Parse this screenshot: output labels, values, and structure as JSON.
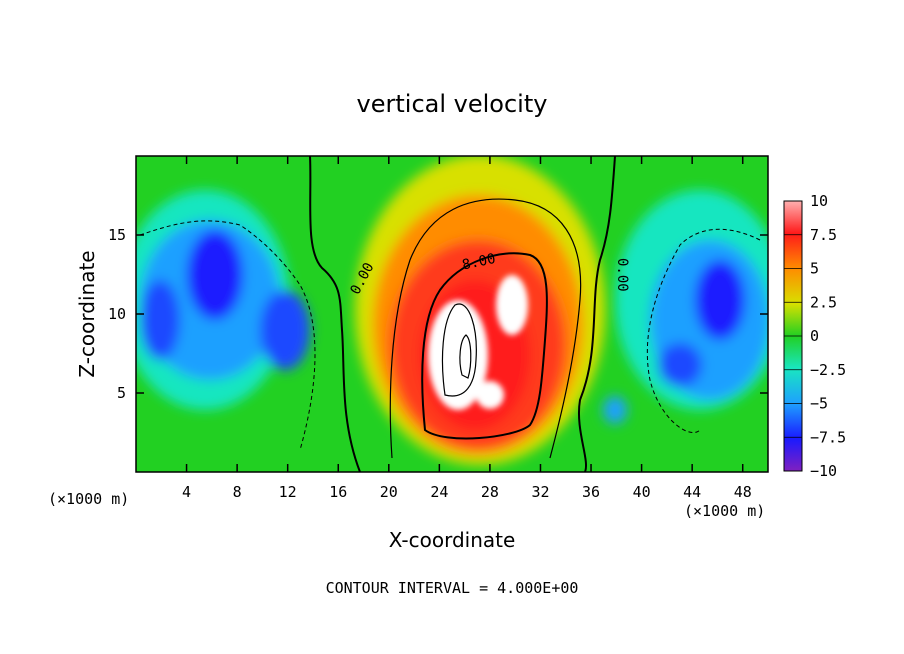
{
  "chart_data": {
    "type": "heatmap",
    "title": "vertical velocity",
    "xlabel": "X-coordinate",
    "ylabel": "Z-coordinate",
    "x_unit": "(×1000 m)",
    "z_unit": "(×1000 m)",
    "xlim": [
      0,
      50
    ],
    "ylim": [
      0,
      20
    ],
    "xticks": [
      4,
      8,
      12,
      16,
      20,
      24,
      28,
      32,
      36,
      40,
      44,
      48
    ],
    "yticks": [
      5,
      10,
      15
    ],
    "colorbar": {
      "range": [
        -10,
        10
      ],
      "ticks": [
        "10",
        "7.5",
        "5",
        "2.5",
        "0",
        "−2.5",
        "−5",
        "−7.5",
        "−10"
      ]
    },
    "contour_interval": "CONTOUR INTERVAL = 4.000E+00",
    "contour_labels": [
      "0.00",
      "8.00",
      "0.00"
    ],
    "features": [
      {
        "name": "updraft-core",
        "x": 26,
        "z": 8,
        "value": 16
      },
      {
        "name": "updraft-lobe",
        "x": 29,
        "z": 11,
        "value": 12
      },
      {
        "name": "downdraft-left",
        "x": 7,
        "z": 11,
        "value": -7
      },
      {
        "name": "downdraft-left-low",
        "x": 3,
        "z": 9,
        "value": -6
      },
      {
        "name": "downdraft-right",
        "x": 46,
        "z": 11,
        "value": -7
      },
      {
        "name": "downdraft-right-low",
        "x": 43,
        "z": 7,
        "value": -6
      }
    ]
  }
}
